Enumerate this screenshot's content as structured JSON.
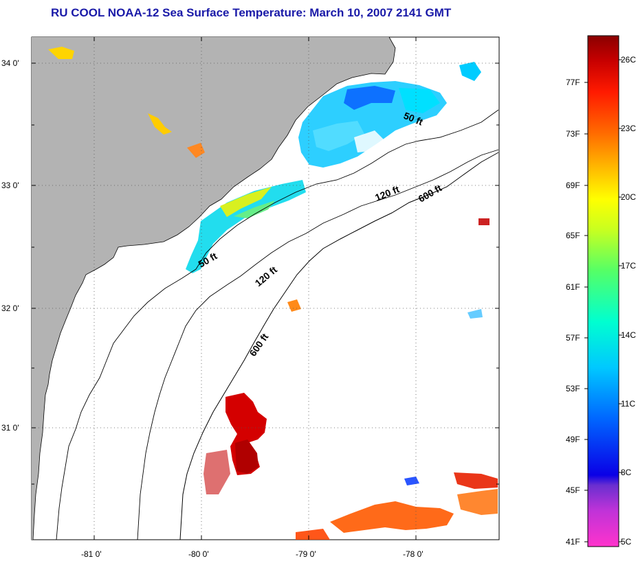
{
  "title": "RU COOL  NOAA-12  Sea Surface Temperature:  March 10, 2007 2141 GMT",
  "axes": {
    "lon_labels": [
      "-81 0'",
      "-80 0'",
      "-79 0'",
      "-78 0'"
    ],
    "lat_labels": [
      "34 0'",
      "33 0'",
      "32 0'",
      "31 0'"
    ]
  },
  "contours": {
    "shelf_50": "50 ft",
    "shelf_50_north": "50 ft",
    "shelf_120": "120 ft",
    "shelf_120_north": "120 ft",
    "shelf_600": "600 ft",
    "shelf_600_north": "600 ft"
  },
  "colorbar": {
    "fahrenheit": [
      "77F",
      "73F",
      "69F",
      "65F",
      "61F",
      "57F",
      "53F",
      "49F",
      "45F",
      "41F"
    ],
    "celsius": [
      "26C",
      "23C",
      "20C",
      "17C",
      "14C",
      "11C",
      "8C",
      "5C"
    ]
  },
  "colors": {
    "land": "#b3b3b3",
    "title": "#1a1aa8"
  }
}
